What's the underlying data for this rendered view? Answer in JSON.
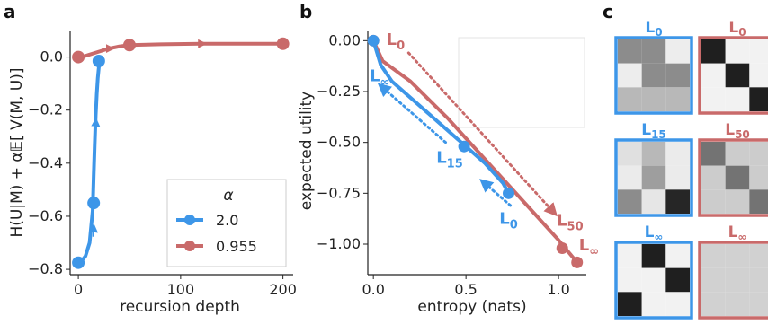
{
  "panel_labels": [
    "a",
    "b",
    "c"
  ],
  "colors": {
    "blue": "#3d96e8",
    "red": "#c96a6a",
    "text": "#222222"
  },
  "chart_data": [
    {
      "type": "line",
      "panel": "a",
      "xlabel": "recursion depth",
      "ylabel": "H(U|M) + α𝔼[ V(M, U)]",
      "xlim": [
        -8,
        210
      ],
      "ylim": [
        -0.82,
        0.1
      ],
      "xticks": [
        "0",
        "100",
        "200"
      ],
      "yticks": [
        "0.0",
        "−0.2",
        "−0.4",
        "−0.6",
        "−0.8"
      ],
      "legend": {
        "title": "α",
        "entries": [
          "2.0",
          "0.955"
        ],
        "placement": "lower-right"
      },
      "series": [
        {
          "name": "2.0",
          "color": "#3d96e8",
          "x": [
            0,
            3,
            7,
            11,
            14,
            15,
            16,
            17,
            18,
            19,
            20,
            21,
            22
          ],
          "y": [
            -0.775,
            -0.77,
            -0.75,
            -0.7,
            -0.58,
            -0.45,
            -0.33,
            -0.22,
            -0.14,
            -0.08,
            -0.04,
            -0.015,
            -0.005
          ],
          "markers": [
            [
              0,
              -0.775
            ],
            [
              15,
              -0.55
            ],
            [
              20,
              -0.015
            ]
          ],
          "arrows": [
            [
              15,
              -0.65
            ],
            [
              17,
              -0.25
            ]
          ]
        },
        {
          "name": "0.955",
          "color": "#c96a6a",
          "x": [
            0,
            5,
            10,
            20,
            30,
            40,
            50,
            80,
            120,
            160,
            200
          ],
          "y": [
            0.0,
            0.002,
            0.008,
            0.02,
            0.032,
            0.04,
            0.045,
            0.048,
            0.05,
            0.05,
            0.05
          ],
          "markers": [
            [
              0,
              0.0
            ],
            [
              50,
              0.045
            ],
            [
              200,
              0.05
            ]
          ],
          "arrows": [
            [
              30,
              0.032
            ],
            [
              120,
              0.05
            ]
          ]
        }
      ]
    },
    {
      "type": "line",
      "panel": "b",
      "xlabel": "entropy (nats)",
      "ylabel": "expected utility",
      "xlim": [
        -0.03,
        1.15
      ],
      "ylim": [
        -1.15,
        0.05
      ],
      "xticks": [
        "0.0",
        "0.5",
        "1.0"
      ],
      "yticks": [
        "0.00",
        "−0.25",
        "−0.50",
        "−0.75",
        "−1.00"
      ],
      "series": [
        {
          "color": "#3d96e8",
          "x": [
            0.0,
            0.04,
            0.1,
            0.3,
            0.5,
            0.6,
            0.7,
            0.73
          ],
          "y": [
            0.0,
            -0.12,
            -0.2,
            -0.36,
            -0.52,
            -0.6,
            -0.7,
            -0.75
          ],
          "markers": [
            [
              0.0,
              0.0
            ],
            [
              0.49,
              -0.52
            ],
            [
              0.73,
              -0.75
            ]
          ]
        },
        {
          "color": "#c96a6a",
          "x": [
            0.0,
            0.05,
            0.2,
            0.4,
            0.6,
            0.8,
            1.0,
            1.1
          ],
          "y": [
            0.0,
            -0.1,
            -0.2,
            -0.38,
            -0.58,
            -0.78,
            -0.98,
            -1.09
          ],
          "markers": [
            [
              0.0,
              0.0
            ],
            [
              1.02,
              -1.02
            ],
            [
              1.1,
              -1.09
            ]
          ]
        }
      ],
      "annotations": [
        {
          "text": "L",
          "sub": "0",
          "color": "#c96a6a",
          "x": 0.07,
          "y": -0.02
        },
        {
          "text": "L",
          "sub": "∞",
          "color": "#3d96e8",
          "x": -0.02,
          "y": -0.2
        },
        {
          "text": "L",
          "sub": "15",
          "color": "#3d96e8",
          "x": 0.34,
          "y": -0.6
        },
        {
          "text": "L",
          "sub": "0",
          "color": "#3d96e8",
          "x": 0.68,
          "y": -0.9
        },
        {
          "text": "L",
          "sub": "50",
          "color": "#c96a6a",
          "x": 0.99,
          "y": -0.91
        },
        {
          "text": "L",
          "sub": "∞",
          "color": "#c96a6a",
          "x": 1.11,
          "y": -1.03
        }
      ],
      "dotted_arrows": [
        {
          "color": "#c96a6a",
          "from": [
            0.19,
            -0.06
          ],
          "to": [
            0.97,
            -0.84
          ]
        },
        {
          "color": "#3d96e8",
          "from": [
            0.39,
            -0.5
          ],
          "to": [
            0.05,
            -0.23
          ]
        },
        {
          "color": "#3d96e8",
          "from": [
            0.74,
            -0.81
          ],
          "to": [
            0.6,
            -0.7
          ]
        }
      ]
    },
    {
      "type": "heatmap",
      "panel": "c",
      "matrices": [
        {
          "label": "L",
          "sub": "0",
          "color": "#3d96e8",
          "cells": [
            [
              0.55,
              0.55,
              0.93
            ],
            [
              0.93,
              0.55,
              0.55
            ],
            [
              0.72,
              0.72,
              0.72
            ]
          ]
        },
        {
          "label": "L",
          "sub": "0",
          "color": "#c96a6a",
          "cells": [
            [
              0.12,
              0.95,
              0.95
            ],
            [
              0.95,
              0.12,
              0.95
            ],
            [
              0.95,
              0.95,
              0.12
            ]
          ]
        },
        {
          "label": "L",
          "sub": "15",
          "color": "#3d96e8",
          "cells": [
            [
              0.88,
              0.72,
              0.92
            ],
            [
              0.92,
              0.62,
              0.92
            ],
            [
              0.55,
              0.9,
              0.15
            ]
          ]
        },
        {
          "label": "L",
          "sub": "50",
          "color": "#c96a6a",
          "cells": [
            [
              0.45,
              0.8,
              0.8
            ],
            [
              0.8,
              0.45,
              0.8
            ],
            [
              0.8,
              0.8,
              0.45
            ]
          ]
        },
        {
          "label": "L",
          "sub": "∞",
          "color": "#3d96e8",
          "cells": [
            [
              0.95,
              0.12,
              0.95
            ],
            [
              0.95,
              0.95,
              0.12
            ],
            [
              0.12,
              0.95,
              0.95
            ]
          ]
        },
        {
          "label": "L",
          "sub": "∞",
          "color": "#c96a6a",
          "cells": [
            [
              0.82,
              0.82,
              0.82
            ],
            [
              0.82,
              0.82,
              0.82
            ],
            [
              0.82,
              0.82,
              0.82
            ]
          ]
        }
      ]
    }
  ]
}
